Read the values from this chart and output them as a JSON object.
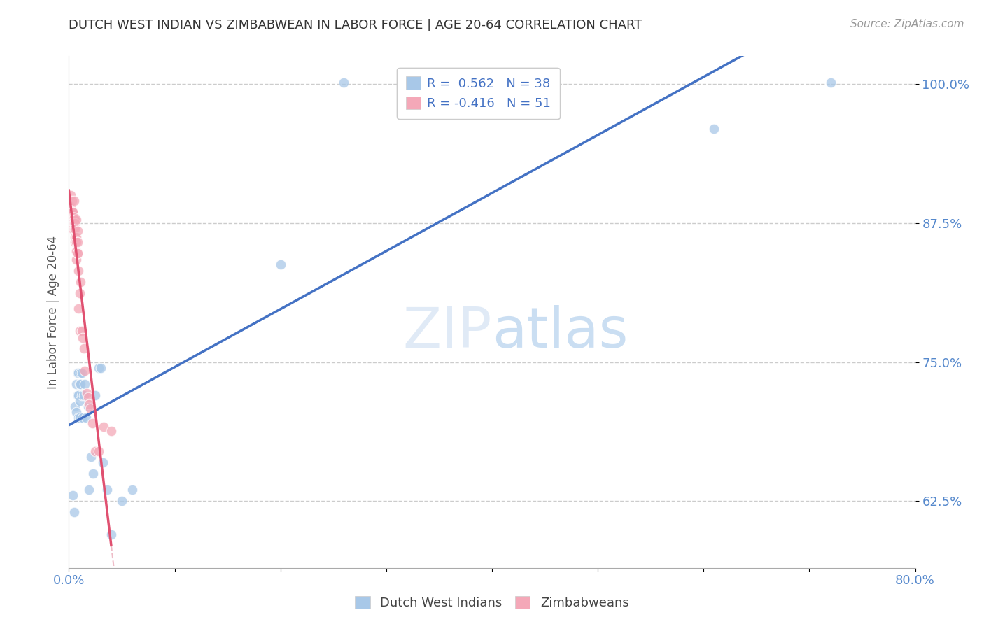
{
  "title": "DUTCH WEST INDIAN VS ZIMBABWEAN IN LABOR FORCE | AGE 20-64 CORRELATION CHART",
  "source": "Source: ZipAtlas.com",
  "ylabel": "In Labor Force | Age 20-64",
  "xlim": [
    0.0,
    0.8
  ],
  "ylim": [
    0.565,
    1.025
  ],
  "xticks": [
    0.0,
    0.1,
    0.2,
    0.3,
    0.4,
    0.5,
    0.6,
    0.7,
    0.8
  ],
  "xticklabels": [
    "0.0%",
    "",
    "",
    "",
    "",
    "",
    "",
    "",
    "80.0%"
  ],
  "yticks": [
    0.625,
    0.75,
    0.875,
    1.0
  ],
  "yticklabels": [
    "62.5%",
    "75.0%",
    "87.5%",
    "100.0%"
  ],
  "blue_color": "#a8c8e8",
  "pink_color": "#f4a8b8",
  "blue_line_color": "#4472c4",
  "pink_line_color": "#e05070",
  "pink_dash_color": "#e8a0b0",
  "legend_R_blue": "0.562",
  "legend_N_blue": "38",
  "legend_R_pink": "-0.416",
  "legend_N_pink": "51",
  "legend_label_blue": "Dutch West Indians",
  "legend_label_pink": "Zimbabweans",
  "watermark_zip": "ZIP",
  "watermark_atlas": "atlas",
  "blue_x": [
    0.004,
    0.005,
    0.006,
    0.007,
    0.007,
    0.008,
    0.008,
    0.009,
    0.009,
    0.009,
    0.01,
    0.01,
    0.01,
    0.011,
    0.011,
    0.012,
    0.012,
    0.013,
    0.014,
    0.015,
    0.016,
    0.018,
    0.019,
    0.021,
    0.023,
    0.025,
    0.028,
    0.03,
    0.032,
    0.036,
    0.04,
    0.05,
    0.06,
    0.2,
    0.26,
    0.32,
    0.61,
    0.72
  ],
  "blue_y": [
    0.63,
    0.615,
    0.71,
    0.73,
    0.705,
    0.72,
    0.74,
    0.7,
    0.72,
    0.74,
    0.715,
    0.73,
    0.7,
    0.74,
    0.73,
    0.72,
    0.74,
    0.7,
    0.72,
    0.73,
    0.7,
    0.71,
    0.635,
    0.665,
    0.65,
    0.72,
    0.745,
    0.745,
    0.66,
    0.635,
    0.595,
    0.625,
    0.635,
    0.838,
    1.001,
    0.998,
    0.96,
    1.001
  ],
  "pink_x": [
    0.002,
    0.002,
    0.002,
    0.003,
    0.003,
    0.003,
    0.003,
    0.004,
    0.004,
    0.004,
    0.004,
    0.004,
    0.005,
    0.005,
    0.005,
    0.005,
    0.005,
    0.005,
    0.006,
    0.006,
    0.006,
    0.006,
    0.006,
    0.006,
    0.007,
    0.007,
    0.007,
    0.007,
    0.007,
    0.008,
    0.008,
    0.008,
    0.008,
    0.009,
    0.009,
    0.01,
    0.01,
    0.011,
    0.012,
    0.013,
    0.014,
    0.015,
    0.017,
    0.018,
    0.019,
    0.02,
    0.022,
    0.025,
    0.028,
    0.033,
    0.04
  ],
  "pink_y": [
    0.89,
    0.88,
    0.9,
    0.885,
    0.875,
    0.895,
    0.87,
    0.885,
    0.875,
    0.87,
    0.885,
    0.88,
    0.895,
    0.88,
    0.875,
    0.87,
    0.88,
    0.875,
    0.878,
    0.872,
    0.875,
    0.87,
    0.858,
    0.862,
    0.878,
    0.862,
    0.858,
    0.85,
    0.842,
    0.868,
    0.848,
    0.848,
    0.858,
    0.832,
    0.798,
    0.812,
    0.778,
    0.822,
    0.778,
    0.772,
    0.762,
    0.742,
    0.722,
    0.718,
    0.712,
    0.708,
    0.695,
    0.67,
    0.67,
    0.692,
    0.688
  ]
}
